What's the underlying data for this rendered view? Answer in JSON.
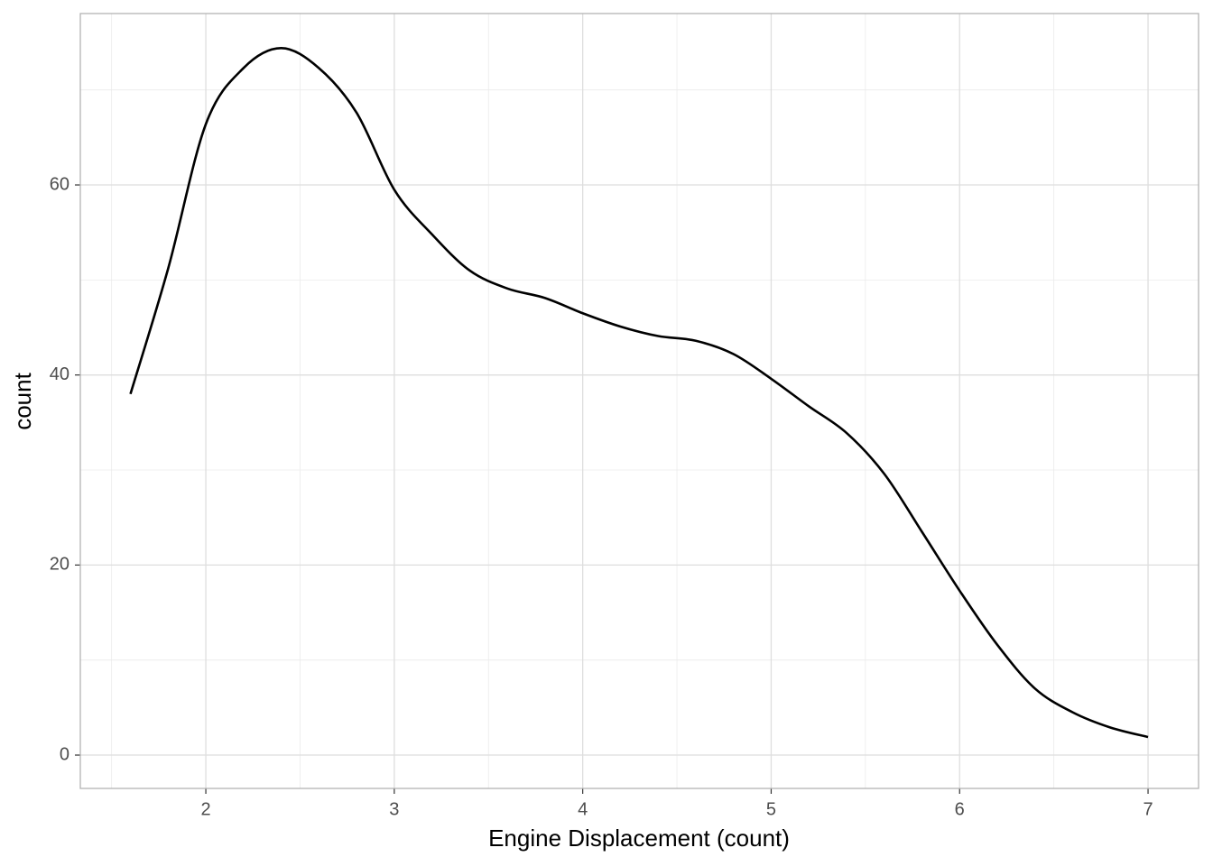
{
  "chart_data": {
    "type": "line",
    "x_label": "Engine Displacement (count)",
    "y_label": "count",
    "x": [
      1.6,
      1.8,
      2.0,
      2.2,
      2.4,
      2.6,
      2.8,
      3.0,
      3.2,
      3.4,
      3.6,
      3.8,
      4.0,
      4.2,
      4.4,
      4.6,
      4.8,
      5.0,
      5.2,
      5.4,
      5.6,
      5.8,
      6.0,
      6.2,
      6.4,
      6.6,
      6.8,
      7.0
    ],
    "series": [
      {
        "name": "count",
        "color": "#000000",
        "values": [
          38,
          51.2,
          66.4,
          72.3,
          74.4,
          72.3,
          67.6,
          59.5,
          54.8,
          51,
          49.1,
          48.1,
          46.5,
          45.1,
          44.1,
          43.6,
          42.2,
          39.6,
          36.7,
          33.9,
          29.6,
          23.5,
          17.3,
          11.6,
          7.0,
          4.5,
          2.9,
          1.9
        ]
      }
    ],
    "xlim": [
      1.334,
      7.268
    ],
    "ylim": [
      -3.51,
      78.04
    ],
    "xticks": [
      2,
      3,
      4,
      5,
      6,
      7
    ],
    "yticks": [
      0,
      20,
      40,
      60
    ],
    "x_minor_ticks": [
      1.5,
      2.5,
      3.5,
      4.5,
      5.5,
      6.5
    ],
    "y_minor_ticks": [
      10,
      30,
      50,
      70
    ],
    "grid": true
  }
}
